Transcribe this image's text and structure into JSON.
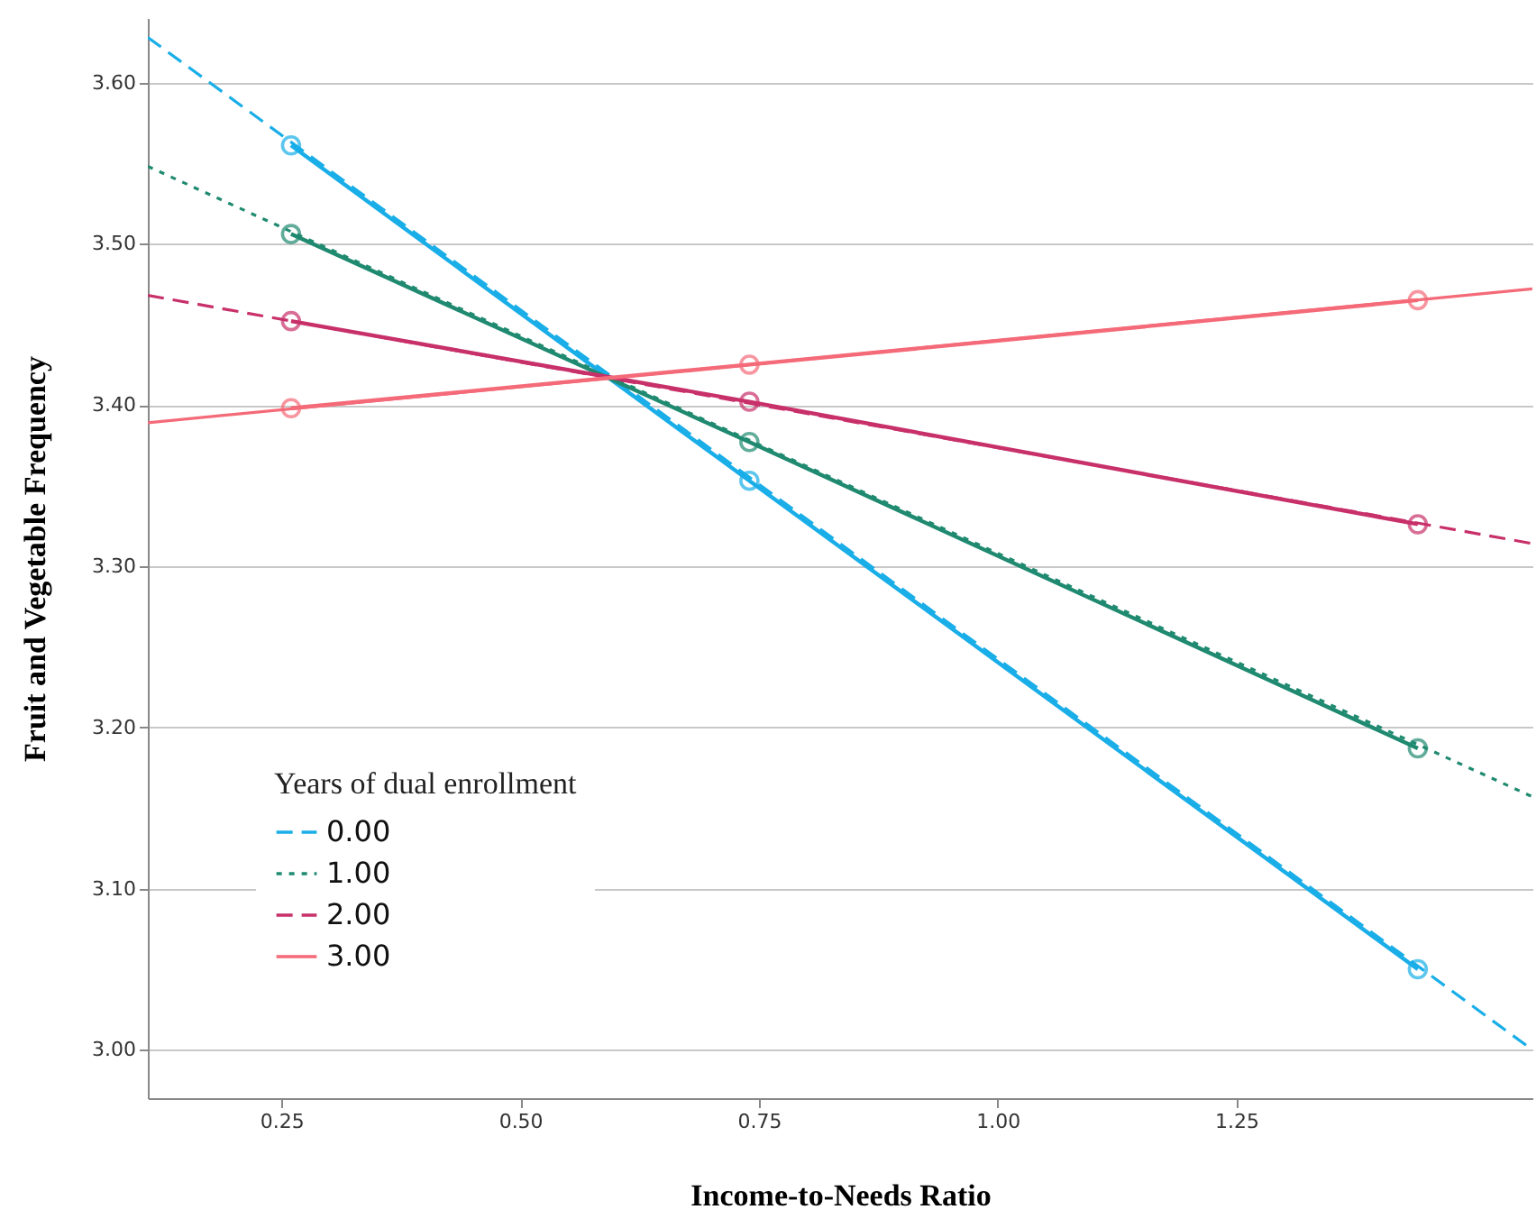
{
  "chart_data": {
    "type": "line",
    "xlabel": "Income-to-Needs Ratio",
    "ylabel": "Fruit and Vegetable Frequency",
    "legend_title": "Years of dual enrollment",
    "xlim": [
      0.11,
      1.56
    ],
    "ylim": [
      2.97,
      3.64
    ],
    "xticks": [
      {
        "value": 0.25,
        "label": "0.25"
      },
      {
        "value": 0.5,
        "label": "0.50"
      },
      {
        "value": 0.75,
        "label": "0.75"
      },
      {
        "value": 1,
        "label": "1.00"
      },
      {
        "value": 1.25,
        "label": "1.25"
      }
    ],
    "yticks": [
      {
        "value": 3,
        "label": "3.00"
      },
      {
        "value": 3.1,
        "label": "3.10"
      },
      {
        "value": 3.2,
        "label": "3.20"
      },
      {
        "value": 3.3,
        "label": "3.30"
      },
      {
        "value": 3.4,
        "label": "3.40"
      },
      {
        "value": 3.5,
        "label": "3.50"
      },
      {
        "value": 3.6,
        "label": "3.60"
      }
    ],
    "grid": "y",
    "legend": "bottom left",
    "marker": "circle",
    "series": [
      {
        "name": "0.00",
        "color": "#1aaee8",
        "x": [
          0.11,
          1.56
        ],
        "values": [
          3.628,
          3.0
        ],
        "line_style": "dashed",
        "marker": "none"
      },
      {
        "name": "1.00",
        "color": "#1f8a70",
        "x": [
          0.11,
          1.56
        ],
        "values": [
          3.548,
          3.157
        ],
        "line_style": "dotted",
        "marker": "none"
      },
      {
        "name": "2.00",
        "color": "#c8306a",
        "x": [
          0.11,
          1.56
        ],
        "values": [
          3.468,
          3.314
        ],
        "line_style": "dashed",
        "marker": "none"
      },
      {
        "name": "3.00",
        "color": "#f46a78",
        "x": [
          0.11,
          1.56
        ],
        "values": [
          3.389,
          3.472
        ],
        "line_style": "solid",
        "marker": "none"
      },
      {
        "color": "#1aaee8",
        "x": [
          0.26,
          0.74,
          1.44
        ],
        "values": [
          3.561,
          3.353,
          3.05
        ],
        "line_style": "solid"
      },
      {
        "color": "#1f8a70",
        "x": [
          0.26,
          0.74,
          1.44
        ],
        "values": [
          3.506,
          3.377,
          3.187
        ],
        "line_style": "solid"
      },
      {
        "color": "#c8306a",
        "x": [
          0.26,
          0.74,
          1.44
        ],
        "values": [
          3.452,
          3.402,
          3.326
        ],
        "line_style": "solid"
      },
      {
        "color": "#f46a78",
        "x": [
          0.26,
          0.74,
          1.44
        ],
        "values": [
          3.398,
          3.425,
          3.465
        ],
        "line_style": "solid"
      }
    ]
  }
}
